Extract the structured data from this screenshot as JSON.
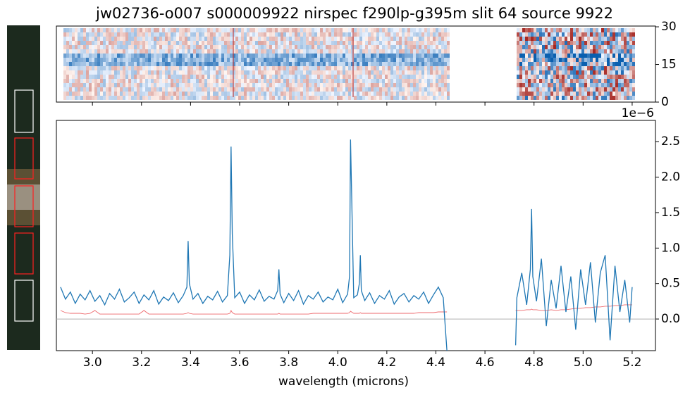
{
  "chart_data": [
    {
      "type": "image",
      "title": "jw02736-o007  s000009922  nirspec  f290lp-g395m  slit 64  source 9922",
      "ylim": [
        0,
        30.3
      ],
      "yticks": [
        0,
        15,
        30
      ]
    },
    {
      "type": "line",
      "xlabel": "wavelength (microns)",
      "offset_label": "1e−6",
      "xlim": [
        2.853,
        5.295
      ],
      "xticks": [
        {
          "value": 3,
          "label": "3.0"
        },
        3.2,
        3.4,
        3.6,
        3.8,
        {
          "value": 4,
          "label": "4.0"
        },
        4.2,
        4.4,
        4.6,
        4.8,
        {
          "value": 5,
          "label": "5.0"
        },
        5.2
      ],
      "ylim": [
        -0.446,
        2.8
      ],
      "yticks": [
        {
          "value": 0,
          "label": "0.0"
        },
        0.5,
        {
          "value": 1,
          "label": "1.0"
        },
        1.5,
        {
          "value": 2,
          "label": "2.0"
        },
        2.5
      ],
      "zero_line": true,
      "zero_line_color": "#b0b0b0",
      "x": [
        2.87,
        2.89,
        2.91,
        2.93,
        2.95,
        2.97,
        2.99,
        3.01,
        3.03,
        3.05,
        3.07,
        3.09,
        3.11,
        3.13,
        3.15,
        3.17,
        3.19,
        3.21,
        3.23,
        3.25,
        3.27,
        3.29,
        3.31,
        3.33,
        3.35,
        3.37,
        3.385,
        3.39,
        3.395,
        3.41,
        3.43,
        3.45,
        3.47,
        3.49,
        3.51,
        3.53,
        3.55,
        3.56,
        3.565,
        3.57,
        3.58,
        3.6,
        3.62,
        3.64,
        3.66,
        3.68,
        3.7,
        3.72,
        3.74,
        3.755,
        3.76,
        3.765,
        3.78,
        3.8,
        3.82,
        3.84,
        3.86,
        3.88,
        3.9,
        3.92,
        3.94,
        3.96,
        3.98,
        4.0,
        4.02,
        4.04,
        4.048,
        4.052,
        4.056,
        4.065,
        4.08,
        4.088,
        4.092,
        4.096,
        4.11,
        4.13,
        4.15,
        4.17,
        4.19,
        4.21,
        4.23,
        4.25,
        4.27,
        4.29,
        4.31,
        4.33,
        4.35,
        4.37,
        4.39,
        4.41,
        4.43,
        4.445,
        4.58,
        4.725,
        4.73,
        4.75,
        4.77,
        4.785,
        4.79,
        4.795,
        4.81,
        4.83,
        4.85,
        4.87,
        4.89,
        4.91,
        4.93,
        4.95,
        4.97,
        4.99,
        5.01,
        5.03,
        5.05,
        5.07,
        5.09,
        5.11,
        5.13,
        5.15,
        5.17,
        5.19,
        5.2
      ],
      "series": [
        {
          "color": "#1f77b4",
          "values": [
            0.45,
            0.28,
            0.38,
            0.22,
            0.35,
            0.27,
            0.4,
            0.25,
            0.33,
            0.2,
            0.36,
            0.28,
            0.42,
            0.24,
            0.3,
            0.38,
            0.22,
            0.34,
            0.27,
            0.4,
            0.21,
            0.31,
            0.26,
            0.37,
            0.23,
            0.33,
            0.45,
            1.1,
            0.5,
            0.28,
            0.36,
            0.22,
            0.32,
            0.27,
            0.39,
            0.24,
            0.33,
            0.9,
            2.43,
            1.2,
            0.3,
            0.38,
            0.22,
            0.34,
            0.27,
            0.41,
            0.25,
            0.32,
            0.28,
            0.4,
            0.7,
            0.35,
            0.23,
            0.36,
            0.26,
            0.4,
            0.21,
            0.33,
            0.28,
            0.38,
            0.24,
            0.31,
            0.27,
            0.42,
            0.23,
            0.35,
            0.6,
            2.53,
            1.85,
            0.3,
            0.34,
            0.5,
            0.9,
            0.4,
            0.26,
            0.37,
            0.22,
            0.33,
            0.28,
            0.4,
            0.21,
            0.31,
            0.36,
            0.24,
            0.33,
            0.28,
            0.38,
            0.22,
            0.34,
            0.45,
            0.3,
            -0.45,
            null,
            -0.37,
            0.3,
            0.65,
            0.2,
            0.7,
            1.55,
            0.6,
            0.25,
            0.85,
            -0.1,
            0.55,
            0.15,
            0.75,
            0.1,
            0.6,
            -0.15,
            0.7,
            0.2,
            0.8,
            -0.05,
            0.65,
            0.9,
            -0.3,
            0.75,
            0.1,
            0.55,
            -0.05,
            0.45
          ]
        },
        {
          "color": "#ee6a6e",
          "values": [
            0.12,
            0.09,
            0.08,
            0.08,
            0.08,
            0.07,
            0.08,
            0.12,
            0.07,
            0.07,
            0.07,
            0.07,
            0.07,
            0.07,
            0.07,
            0.07,
            0.07,
            0.12,
            0.07,
            0.07,
            0.07,
            0.07,
            0.07,
            0.07,
            0.07,
            0.07,
            0.08,
            0.09,
            0.08,
            0.07,
            0.07,
            0.07,
            0.07,
            0.07,
            0.07,
            0.07,
            0.07,
            0.08,
            0.12,
            0.09,
            0.07,
            0.07,
            0.07,
            0.07,
            0.07,
            0.07,
            0.07,
            0.07,
            0.07,
            0.07,
            0.08,
            0.07,
            0.07,
            0.07,
            0.07,
            0.07,
            0.07,
            0.07,
            0.08,
            0.08,
            0.08,
            0.08,
            0.08,
            0.08,
            0.08,
            0.08,
            0.09,
            0.11,
            0.1,
            0.08,
            0.08,
            0.08,
            0.09,
            0.08,
            0.08,
            0.08,
            0.08,
            0.08,
            0.08,
            0.08,
            0.08,
            0.08,
            0.08,
            0.08,
            0.08,
            0.09,
            0.09,
            0.09,
            0.09,
            0.1,
            0.1,
            0.1,
            null,
            0.12,
            0.12,
            0.12,
            0.13,
            0.13,
            0.14,
            0.13,
            0.13,
            0.12,
            0.12,
            0.13,
            0.12,
            0.13,
            0.13,
            0.14,
            0.15,
            0.15,
            0.16,
            0.16,
            0.17,
            0.17,
            0.18,
            0.18,
            0.19,
            0.19,
            0.2,
            0.2,
            0.2
          ]
        }
      ]
    }
  ]
}
